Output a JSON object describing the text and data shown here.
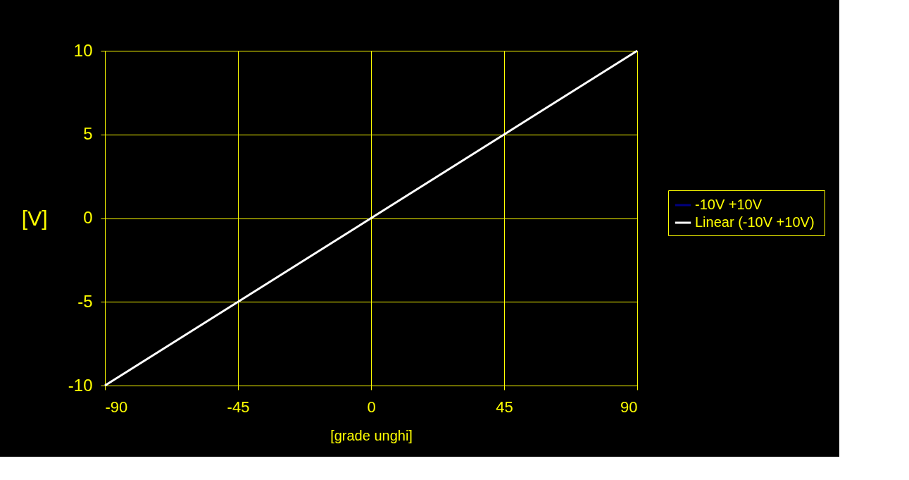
{
  "chart_data": {
    "type": "line",
    "xlabel": "[grade unghi]",
    "ylabel": "[V]",
    "x": [
      -90,
      -45,
      0,
      45,
      90
    ],
    "series": [
      {
        "name": "-10V  +10V",
        "color": "#000080",
        "values": [
          null,
          null,
          null,
          null,
          null
        ]
      },
      {
        "name": "Linear (-10V  +10V)",
        "color": "#ffffff",
        "values": [
          -10,
          -5,
          0,
          5,
          10
        ]
      }
    ],
    "xlim": [
      -90,
      90
    ],
    "xticks": [
      -90,
      -45,
      0,
      45,
      90
    ],
    "ylim": [
      -10,
      10
    ],
    "yticks": [
      -10,
      -5,
      0,
      5,
      10
    ],
    "grid": true,
    "legend": "right",
    "marker": "none",
    "line_style": "solid"
  }
}
